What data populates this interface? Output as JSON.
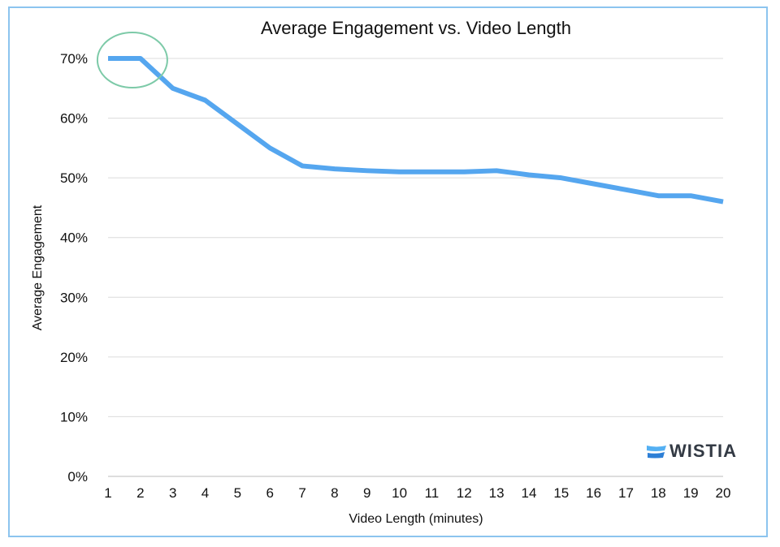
{
  "chart_data": {
    "type": "line",
    "title": "Average Engagement vs. Video Length",
    "xlabel": "Video Length (minutes)",
    "ylabel": "Average Engagement",
    "x": [
      1,
      2,
      3,
      4,
      5,
      6,
      7,
      8,
      9,
      10,
      11,
      12,
      13,
      14,
      15,
      16,
      17,
      18,
      19,
      20
    ],
    "series": [
      {
        "values": [
          70,
          70,
          65,
          63,
          59,
          55,
          52,
          51.5,
          51.2,
          51,
          51,
          51,
          51.2,
          50.5,
          50,
          49,
          48,
          47,
          47,
          46
        ],
        "color": "#55a6ef"
      }
    ],
    "yticks": [
      "0%",
      "10%",
      "20%",
      "30%",
      "40%",
      "50%",
      "60%",
      "70%"
    ],
    "ylim": [
      0,
      70
    ],
    "xlim": [
      1,
      20
    ],
    "grid": "horizontal",
    "annotation": {
      "type": "ellipse",
      "around_x": [
        1,
        2
      ],
      "around_y": 70,
      "color": "#7dcaa8"
    }
  },
  "brand": {
    "name": "WISTIA",
    "color": "#2d8ee0"
  }
}
